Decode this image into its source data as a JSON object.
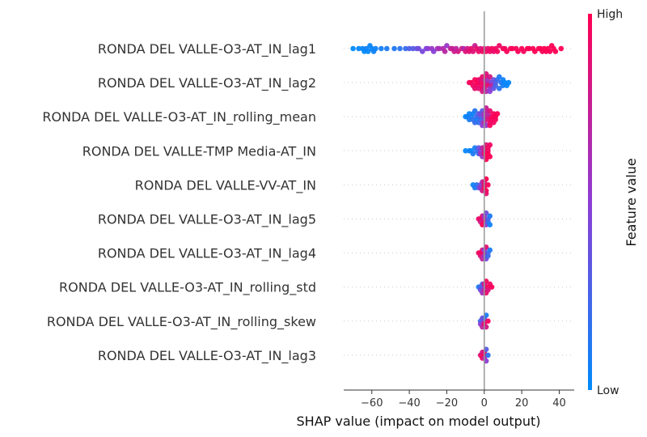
{
  "chart_data": {
    "type": "scatter",
    "subtype": "shap-beeswarm",
    "title": "",
    "xlabel": "SHAP value (impact on model output)",
    "ylabel": "",
    "xlim": [
      -75,
      48
    ],
    "xticks": [
      -60,
      -40,
      -20,
      0,
      20,
      40
    ],
    "xtick_labels": [
      "−60",
      "−40",
      "−20",
      "0",
      "20",
      "40"
    ],
    "grid": false,
    "zero_line": true,
    "colorbar": {
      "label": "Feature value",
      "high_label": "High",
      "low_label": "Low",
      "low_color": "#008bfb",
      "high_color": "#ff0052",
      "mid_color": "#8d3dd6"
    },
    "features": [
      {
        "name": "RONDA DEL VALLE-O3-AT_IN_lag1",
        "points": [
          {
            "x": -70,
            "v": 0.0
          },
          {
            "x": -67,
            "v": 0.02
          },
          {
            "x": -65,
            "v": 0.03
          },
          {
            "x": -64,
            "v": 0.01
          },
          {
            "x": -63,
            "v": 0.05
          },
          {
            "x": -62,
            "v": 0.02
          },
          {
            "x": -61,
            "v": 0.04
          },
          {
            "x": -60,
            "v": 0.03
          },
          {
            "x": -59,
            "v": 0.06
          },
          {
            "x": -58,
            "v": 0.05
          },
          {
            "x": -55,
            "v": 0.08
          },
          {
            "x": -52,
            "v": 0.1
          },
          {
            "x": -48,
            "v": 0.12
          },
          {
            "x": -45,
            "v": 0.15
          },
          {
            "x": -42,
            "v": 0.2
          },
          {
            "x": -40,
            "v": 0.28
          },
          {
            "x": -38,
            "v": 0.3
          },
          {
            "x": -36,
            "v": 0.35
          },
          {
            "x": -35,
            "v": 0.4
          },
          {
            "x": -33,
            "v": 0.42
          },
          {
            "x": -31,
            "v": 0.45
          },
          {
            "x": -30,
            "v": 0.5
          },
          {
            "x": -28,
            "v": 0.55
          },
          {
            "x": -27,
            "v": 0.48
          },
          {
            "x": -25,
            "v": 0.6
          },
          {
            "x": -24,
            "v": 0.62
          },
          {
            "x": -22,
            "v": 0.66
          },
          {
            "x": -21,
            "v": 0.7
          },
          {
            "x": -20,
            "v": 0.55
          },
          {
            "x": -18,
            "v": 0.72
          },
          {
            "x": -17,
            "v": 0.75
          },
          {
            "x": -16,
            "v": 0.78
          },
          {
            "x": -15,
            "v": 0.7
          },
          {
            "x": -14,
            "v": 0.8
          },
          {
            "x": -12,
            "v": 0.82
          },
          {
            "x": -11,
            "v": 0.65
          },
          {
            "x": -10,
            "v": 0.85
          },
          {
            "x": -9,
            "v": 0.8
          },
          {
            "x": -8,
            "v": 0.88
          },
          {
            "x": -7,
            "v": 0.9
          },
          {
            "x": -6,
            "v": 0.86
          },
          {
            "x": -5,
            "v": 0.75
          },
          {
            "x": -4,
            "v": 0.9
          },
          {
            "x": -3,
            "v": 0.92
          },
          {
            "x": -2,
            "v": 0.84
          },
          {
            "x": -1,
            "v": 0.93
          },
          {
            "x": 0,
            "v": 0.9
          },
          {
            "x": 1,
            "v": 0.95
          },
          {
            "x": 2,
            "v": 0.88
          },
          {
            "x": 3,
            "v": 0.92
          },
          {
            "x": 4,
            "v": 0.97
          },
          {
            "x": 5,
            "v": 0.9
          },
          {
            "x": 6,
            "v": 0.94
          },
          {
            "x": 7,
            "v": 0.96
          },
          {
            "x": 8,
            "v": 0.92
          },
          {
            "x": 10,
            "v": 0.97
          },
          {
            "x": 11,
            "v": 0.95
          },
          {
            "x": 12,
            "v": 0.98
          },
          {
            "x": 14,
            "v": 0.96
          },
          {
            "x": 15,
            "v": 0.99
          },
          {
            "x": 17,
            "v": 0.97
          },
          {
            "x": 18,
            "v": 0.98
          },
          {
            "x": 20,
            "v": 0.99
          },
          {
            "x": 21,
            "v": 0.96
          },
          {
            "x": 23,
            "v": 0.99
          },
          {
            "x": 24,
            "v": 1.0
          },
          {
            "x": 26,
            "v": 0.98
          },
          {
            "x": 27,
            "v": 1.0
          },
          {
            "x": 29,
            "v": 0.99
          },
          {
            "x": 30,
            "v": 1.0
          },
          {
            "x": 31,
            "v": 0.98
          },
          {
            "x": 32,
            "v": 1.0
          },
          {
            "x": 33,
            "v": 0.99
          },
          {
            "x": 34,
            "v": 1.0
          },
          {
            "x": 35,
            "v": 0.98
          },
          {
            "x": 36,
            "v": 1.0
          },
          {
            "x": 37,
            "v": 0.99
          },
          {
            "x": 38,
            "v": 1.0
          },
          {
            "x": 41,
            "v": 1.0
          }
        ]
      },
      {
        "name": "RONDA DEL VALLE-O3-AT_IN_lag2",
        "points": [
          {
            "x": -8,
            "v": 0.95
          },
          {
            "x": -7,
            "v": 0.98
          },
          {
            "x": -6,
            "v": 0.92
          },
          {
            "x": -5,
            "v": 0.97
          },
          {
            "x": -5,
            "v": 0.9
          },
          {
            "x": -4,
            "v": 1.0
          },
          {
            "x": -4,
            "v": 0.94
          },
          {
            "x": -3,
            "v": 0.96
          },
          {
            "x": -3,
            "v": 0.88
          },
          {
            "x": -2,
            "v": 0.99
          },
          {
            "x": -2,
            "v": 0.91
          },
          {
            "x": -2,
            "v": 0.85
          },
          {
            "x": -1,
            "v": 0.97
          },
          {
            "x": -1,
            "v": 0.9
          },
          {
            "x": -1,
            "v": 0.82
          },
          {
            "x": 0,
            "v": 0.95
          },
          {
            "x": 0,
            "v": 0.88
          },
          {
            "x": 0,
            "v": 0.8
          },
          {
            "x": 0,
            "v": 0.75
          },
          {
            "x": 1,
            "v": 0.92
          },
          {
            "x": 1,
            "v": 0.7
          },
          {
            "x": 1,
            "v": 0.85
          },
          {
            "x": 2,
            "v": 0.66
          },
          {
            "x": 2,
            "v": 0.9
          },
          {
            "x": 2,
            "v": 0.6
          },
          {
            "x": 3,
            "v": 0.55
          },
          {
            "x": 3,
            "v": 0.8
          },
          {
            "x": 3,
            "v": 0.5
          },
          {
            "x": 4,
            "v": 0.45
          },
          {
            "x": 4,
            "v": 0.7
          },
          {
            "x": 5,
            "v": 0.4
          },
          {
            "x": 5,
            "v": 0.35
          },
          {
            "x": 6,
            "v": 0.3
          },
          {
            "x": 6,
            "v": 0.25
          },
          {
            "x": 7,
            "v": 0.2
          },
          {
            "x": 8,
            "v": 0.15
          },
          {
            "x": 8,
            "v": 0.1
          },
          {
            "x": 9,
            "v": 0.12
          },
          {
            "x": 10,
            "v": 0.08
          },
          {
            "x": 10,
            "v": 0.05
          },
          {
            "x": 11,
            "v": 0.04
          },
          {
            "x": 12,
            "v": 0.03
          },
          {
            "x": 13,
            "v": 0.02
          }
        ]
      },
      {
        "name": "RONDA DEL VALLE-O3-AT_IN_rolling_mean",
        "points": [
          {
            "x": -10,
            "v": 0.02
          },
          {
            "x": -9,
            "v": 0.05
          },
          {
            "x": -8,
            "v": 0.1
          },
          {
            "x": -8,
            "v": 0.04
          },
          {
            "x": -7,
            "v": 0.08
          },
          {
            "x": -6,
            "v": 0.15
          },
          {
            "x": -6,
            "v": 0.06
          },
          {
            "x": -5,
            "v": 0.2
          },
          {
            "x": -5,
            "v": 0.12
          },
          {
            "x": -4,
            "v": 0.25
          },
          {
            "x": -4,
            "v": 0.1
          },
          {
            "x": -3,
            "v": 0.3
          },
          {
            "x": -3,
            "v": 0.18
          },
          {
            "x": -2,
            "v": 0.35
          },
          {
            "x": -2,
            "v": 0.22
          },
          {
            "x": -2,
            "v": 0.4
          },
          {
            "x": -1,
            "v": 0.45
          },
          {
            "x": -1,
            "v": 0.3
          },
          {
            "x": -1,
            "v": 0.5
          },
          {
            "x": 0,
            "v": 0.55
          },
          {
            "x": 0,
            "v": 0.4
          },
          {
            "x": 0,
            "v": 0.6
          },
          {
            "x": 0,
            "v": 0.65
          },
          {
            "x": 1,
            "v": 0.7
          },
          {
            "x": 1,
            "v": 0.55
          },
          {
            "x": 1,
            "v": 0.75
          },
          {
            "x": 2,
            "v": 0.8
          },
          {
            "x": 2,
            "v": 0.85
          },
          {
            "x": 2,
            "v": 0.7
          },
          {
            "x": 3,
            "v": 0.9
          },
          {
            "x": 3,
            "v": 0.88
          },
          {
            "x": 3,
            "v": 0.95
          },
          {
            "x": 4,
            "v": 0.92
          },
          {
            "x": 4,
            "v": 0.97
          },
          {
            "x": 5,
            "v": 0.98
          },
          {
            "x": 5,
            "v": 0.94
          },
          {
            "x": 6,
            "v": 1.0
          },
          {
            "x": 6,
            "v": 0.96
          },
          {
            "x": 7,
            "v": 0.99
          }
        ]
      },
      {
        "name": "RONDA DEL VALLE-TMP Media-AT_IN",
        "points": [
          {
            "x": -10,
            "v": 0.02
          },
          {
            "x": -8,
            "v": 0.05
          },
          {
            "x": -7,
            "v": 0.03
          },
          {
            "x": -6,
            "v": 0.1
          },
          {
            "x": -5,
            "v": 0.08
          },
          {
            "x": -4,
            "v": 0.15
          },
          {
            "x": -3,
            "v": 0.2
          },
          {
            "x": -3,
            "v": 0.35
          },
          {
            "x": -2,
            "v": 0.45
          },
          {
            "x": -2,
            "v": 0.6
          },
          {
            "x": -1,
            "v": 0.7
          },
          {
            "x": -1,
            "v": 0.55
          },
          {
            "x": 0,
            "v": 0.8
          },
          {
            "x": 0,
            "v": 0.9
          },
          {
            "x": 0,
            "v": 0.75
          },
          {
            "x": 1,
            "v": 0.95
          },
          {
            "x": 1,
            "v": 0.85
          },
          {
            "x": 1,
            "v": 0.98
          },
          {
            "x": 2,
            "v": 0.92
          },
          {
            "x": 2,
            "v": 1.0
          },
          {
            "x": 2,
            "v": 0.96
          },
          {
            "x": 3,
            "v": 0.99
          },
          {
            "x": 3,
            "v": 0.94
          }
        ]
      },
      {
        "name": "RONDA DEL VALLE-VV-AT_IN",
        "points": [
          {
            "x": -6,
            "v": 0.05
          },
          {
            "x": -5,
            "v": 0.1
          },
          {
            "x": -4,
            "v": 0.15
          },
          {
            "x": -3,
            "v": 0.3
          },
          {
            "x": -2,
            "v": 0.4
          },
          {
            "x": -2,
            "v": 0.55
          },
          {
            "x": -1,
            "v": 0.65
          },
          {
            "x": -1,
            "v": 0.8
          },
          {
            "x": 0,
            "v": 0.9
          },
          {
            "x": 0,
            "v": 0.95
          },
          {
            "x": 0,
            "v": 0.85
          },
          {
            "x": 1,
            "v": 0.98
          },
          {
            "x": 1,
            "v": 1.0
          },
          {
            "x": 1,
            "v": 0.9
          },
          {
            "x": 2,
            "v": 0.96
          }
        ]
      },
      {
        "name": "RONDA DEL VALLE-O3-AT_IN_lag5",
        "points": [
          {
            "x": -3,
            "v": 0.9
          },
          {
            "x": -2,
            "v": 0.95
          },
          {
            "x": -2,
            "v": 0.8
          },
          {
            "x": -1,
            "v": 0.85
          },
          {
            "x": -1,
            "v": 1.0
          },
          {
            "x": 0,
            "v": 0.7
          },
          {
            "x": 0,
            "v": 0.92
          },
          {
            "x": 0,
            "v": 0.6
          },
          {
            "x": 1,
            "v": 0.5
          },
          {
            "x": 1,
            "v": 0.4
          },
          {
            "x": 2,
            "v": 0.3
          },
          {
            "x": 2,
            "v": 0.2
          },
          {
            "x": 3,
            "v": 0.1
          },
          {
            "x": 3,
            "v": 0.05
          }
        ]
      },
      {
        "name": "RONDA DEL VALLE-O3-AT_IN_lag4",
        "points": [
          {
            "x": -3,
            "v": 0.92
          },
          {
            "x": -2,
            "v": 0.98
          },
          {
            "x": -2,
            "v": 0.85
          },
          {
            "x": -1,
            "v": 0.9
          },
          {
            "x": -1,
            "v": 0.7
          },
          {
            "x": 0,
            "v": 0.95
          },
          {
            "x": 0,
            "v": 0.6
          },
          {
            "x": 0,
            "v": 0.5
          },
          {
            "x": 1,
            "v": 0.4
          },
          {
            "x": 1,
            "v": 0.88
          },
          {
            "x": 2,
            "v": 0.3
          },
          {
            "x": 2,
            "v": 0.2
          },
          {
            "x": 3,
            "v": 0.1
          }
        ]
      },
      {
        "name": "RONDA DEL VALLE-O3-AT_IN_rolling_std",
        "points": [
          {
            "x": -3,
            "v": 0.1
          },
          {
            "x": -2,
            "v": 0.2
          },
          {
            "x": -2,
            "v": 0.4
          },
          {
            "x": -1,
            "v": 0.3
          },
          {
            "x": -1,
            "v": 0.6
          },
          {
            "x": 0,
            "v": 0.5
          },
          {
            "x": 0,
            "v": 0.7
          },
          {
            "x": 0,
            "v": 0.8
          },
          {
            "x": 1,
            "v": 0.9
          },
          {
            "x": 1,
            "v": 0.95
          },
          {
            "x": 2,
            "v": 1.0
          },
          {
            "x": 2,
            "v": 0.85
          },
          {
            "x": 3,
            "v": 0.92
          },
          {
            "x": 4,
            "v": 0.98
          }
        ]
      },
      {
        "name": "RONDA DEL VALLE-O3-AT_IN_rolling_skew",
        "points": [
          {
            "x": -2,
            "v": 0.2
          },
          {
            "x": -2,
            "v": 0.5
          },
          {
            "x": -1,
            "v": 0.4
          },
          {
            "x": -1,
            "v": 0.7
          },
          {
            "x": 0,
            "v": 0.6
          },
          {
            "x": 0,
            "v": 0.9
          },
          {
            "x": 0,
            "v": 0.3
          },
          {
            "x": 1,
            "v": 0.8
          },
          {
            "x": 1,
            "v": 0.1
          },
          {
            "x": 2,
            "v": 0.95
          }
        ]
      },
      {
        "name": "RONDA DEL VALLE-O3-AT_IN_lag3",
        "points": [
          {
            "x": -2,
            "v": 0.9
          },
          {
            "x": -1,
            "v": 0.95
          },
          {
            "x": -1,
            "v": 0.8
          },
          {
            "x": 0,
            "v": 1.0
          },
          {
            "x": 0,
            "v": 0.7
          },
          {
            "x": 0,
            "v": 0.85
          },
          {
            "x": 1,
            "v": 0.5
          },
          {
            "x": 1,
            "v": 0.3
          },
          {
            "x": 2,
            "v": 0.15
          }
        ]
      }
    ]
  }
}
